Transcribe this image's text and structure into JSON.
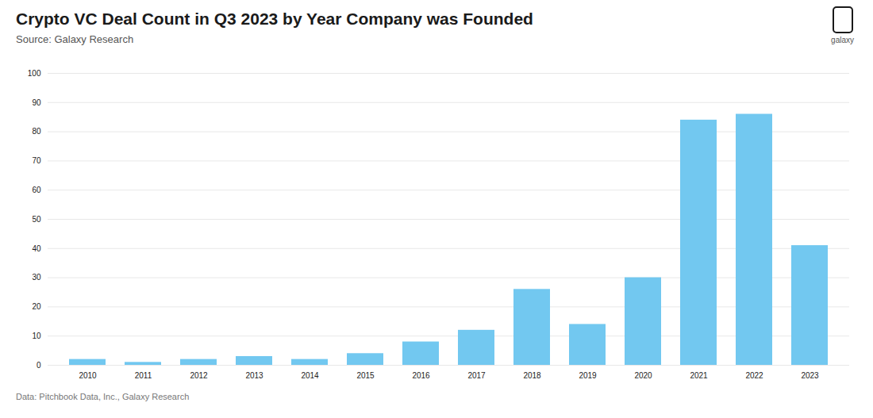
{
  "chart_data": {
    "type": "bar",
    "title": "Crypto VC Deal Count in Q3 2023 by Year Company was Founded",
    "subtitle": "Source: Galaxy Research",
    "annotations": [
      "Data: Pitchbook Data, Inc., Galaxy Research",
      "galaxy"
    ],
    "categories": [
      "2010",
      "2011",
      "2012",
      "2013",
      "2014",
      "2015",
      "2016",
      "2017",
      "2018",
      "2019",
      "2020",
      "2021",
      "2022",
      "2023"
    ],
    "values": [
      2,
      1,
      2,
      3,
      2,
      4,
      8,
      12,
      26,
      14,
      30,
      84,
      86,
      41
    ],
    "color": "#72C8F0",
    "ylim": [
      0,
      100
    ],
    "yticks": [
      0,
      10,
      20,
      30,
      40,
      50,
      60,
      70,
      80,
      90,
      100
    ],
    "grid": true
  }
}
